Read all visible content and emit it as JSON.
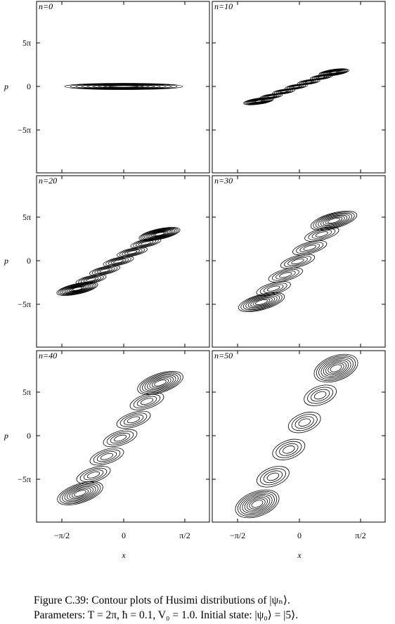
{
  "panels": [
    {
      "label": "n=0"
    },
    {
      "label": "n=10"
    },
    {
      "label": "n=20"
    },
    {
      "label": "n=30"
    },
    {
      "label": "n=40"
    },
    {
      "label": "n=50"
    }
  ],
  "y_ticks": [
    "5π",
    "0",
    "−5π"
  ],
  "x_ticks": [
    "−π/2",
    "0",
    "π/2"
  ],
  "y_label": "p",
  "x_label": "x",
  "caption": {
    "line1": "Figure C.39: Contour plots of Husimi distributions of |ψₙ⟩.",
    "line2": "Parameters: T = 2π, ħ = 0.1, V₀ = 1.0. Initial state: |ψ₀⟩ = |5⟩."
  }
}
